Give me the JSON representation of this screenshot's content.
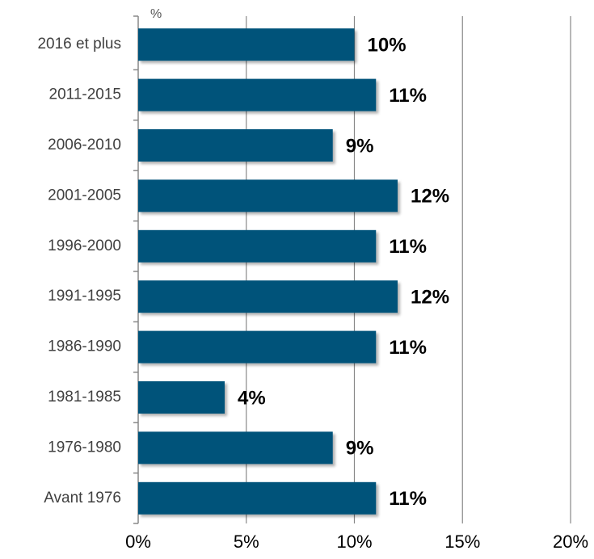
{
  "chart_data": {
    "type": "barh",
    "unit_label": "%",
    "categories": [
      "2016 et plus",
      "2011-2015",
      "2006-2010",
      "2001-2005",
      "1996-2000",
      "1991-1995",
      "1986-1990",
      "1981-1985",
      "1976-1980",
      "Avant 1976"
    ],
    "values": [
      10,
      11,
      9,
      12,
      11,
      12,
      11,
      4,
      9,
      11
    ],
    "value_labels": [
      "10%",
      "11%",
      "9%",
      "12%",
      "11%",
      "12%",
      "11%",
      "4%",
      "9%",
      "11%"
    ],
    "color": "#00537a",
    "xlim": [
      0,
      20
    ],
    "xticks": [
      {
        "value": 0,
        "label": "0%"
      },
      {
        "value": 5,
        "label": "5%"
      },
      {
        "value": 10,
        "label": "10%"
      },
      {
        "value": 15,
        "label": "15%"
      },
      {
        "value": 20,
        "label": "20%"
      }
    ],
    "grid": true
  }
}
